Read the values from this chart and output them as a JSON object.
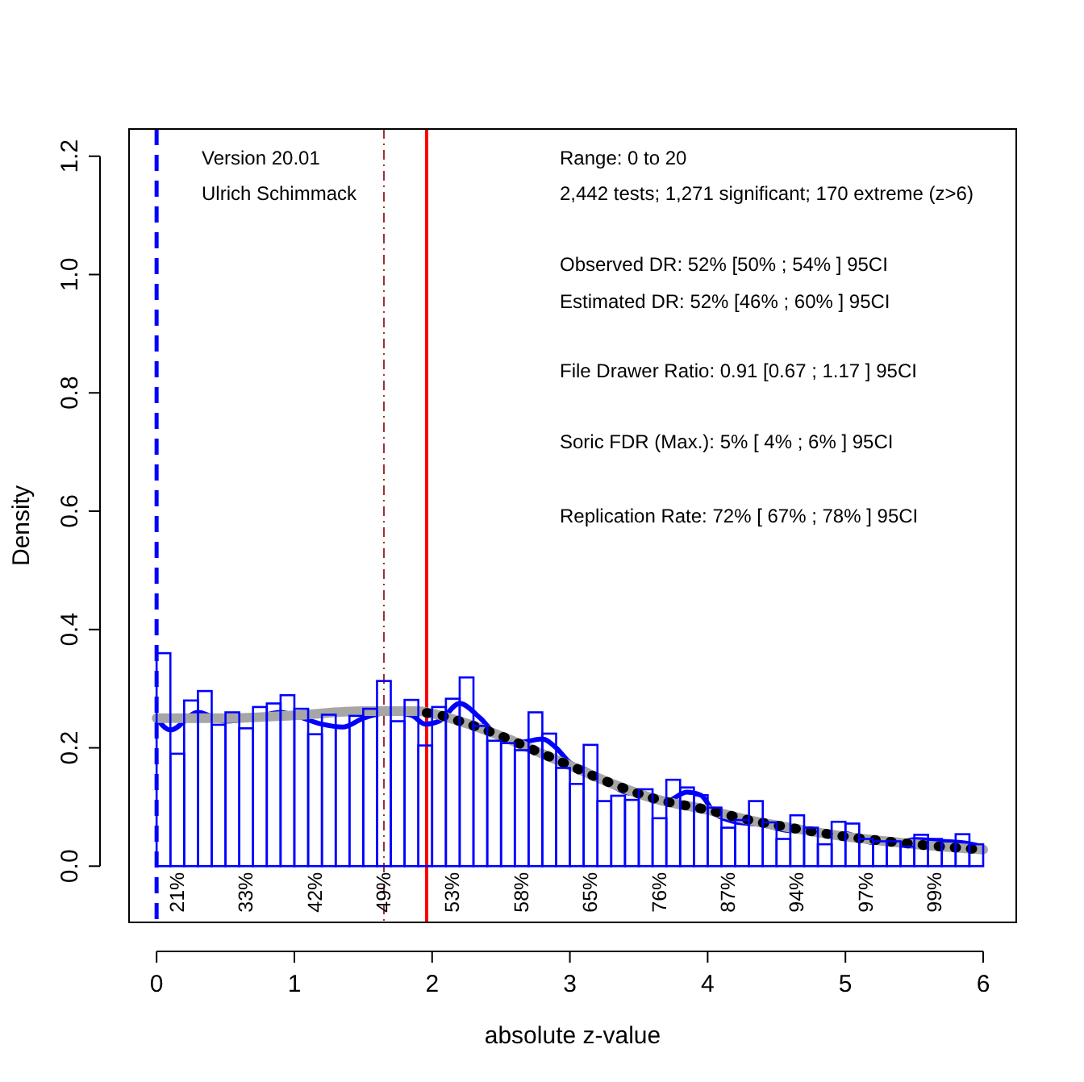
{
  "chart_data": {
    "type": "histogram",
    "xlabel": "absolute z-value",
    "ylabel": "Density",
    "bins": [
      0,
      0.1,
      0.2,
      0.3,
      0.4,
      0.5,
      0.6,
      0.7,
      0.8,
      0.9,
      1,
      1.1,
      1.2,
      1.3,
      1.4,
      1.5,
      1.6,
      1.7,
      1.8,
      1.9,
      2,
      2.1,
      2.2,
      2.3,
      2.4,
      2.5,
      2.6,
      2.7,
      2.8,
      2.9,
      3,
      3.1,
      3.2,
      3.3,
      3.4,
      3.5,
      3.6,
      3.7,
      3.8,
      3.9,
      4,
      4.1,
      4.2,
      4.3,
      4.4,
      4.5,
      4.6,
      4.7,
      4.8,
      4.9,
      5,
      5.1,
      5.2,
      5.3,
      5.4,
      5.5,
      5.6,
      5.7,
      5.8,
      5.9,
      6
    ],
    "values": [
      0.36,
      0.19,
      0.28,
      0.296,
      0.239,
      0.26,
      0.233,
      0.269,
      0.275,
      0.289,
      0.266,
      0.223,
      0.256,
      0.235,
      0.254,
      0.266,
      0.313,
      0.245,
      0.281,
      0.204,
      0.269,
      0.283,
      0.319,
      0.237,
      0.212,
      0.208,
      0.196,
      0.26,
      0.224,
      0.166,
      0.139,
      0.205,
      0.11,
      0.119,
      0.112,
      0.13,
      0.081,
      0.146,
      0.133,
      0.12,
      0.099,
      0.065,
      0.078,
      0.11,
      0.074,
      0.046,
      0.086,
      0.065,
      0.037,
      0.075,
      0.072,
      0.046,
      0.042,
      0.042,
      0.033,
      0.053,
      0.046,
      0.042,
      0.054,
      0.037
    ],
    "color": "#0000ff",
    "series": [
      {
        "type": "line",
        "color": "#0000ff",
        "line_style": "solid",
        "x": [
          0,
          0.1,
          0.3,
          0.5,
          0.7,
          0.9,
          1,
          1.2,
          1.35,
          1.5,
          1.7,
          1.85,
          1.95,
          2.05,
          2.2,
          2.35,
          2.5,
          2.65,
          2.8,
          2.9,
          3,
          3.1,
          3.25,
          3.4,
          3.55,
          3.7,
          3.85,
          3.95,
          4.05,
          4.2,
          4.4,
          4.6,
          4.75,
          4.9,
          5,
          5.2,
          5.4,
          5.5,
          5.7,
          5.9,
          6
        ],
        "values": [
          0.25,
          0.23,
          0.26,
          0.245,
          0.25,
          0.26,
          0.255,
          0.24,
          0.235,
          0.25,
          0.26,
          0.255,
          0.24,
          0.245,
          0.275,
          0.25,
          0.215,
          0.21,
          0.215,
          0.2,
          0.175,
          0.165,
          0.145,
          0.125,
          0.12,
          0.11,
          0.125,
          0.12,
          0.09,
          0.075,
          0.07,
          0.06,
          0.06,
          0.055,
          0.055,
          0.04,
          0.04,
          0.045,
          0.042,
          0.038,
          0.032
        ]
      },
      {
        "type": "line",
        "color": "#a6a6a6",
        "line_style": "solid",
        "x": [
          0,
          0.5,
          1,
          1.5,
          1.9,
          2,
          2.2,
          2.5,
          2.8,
          3,
          3.3,
          3.6,
          4,
          4.3,
          4.6,
          5,
          5.3,
          5.6,
          6
        ],
        "values": [
          0.25,
          0.25,
          0.255,
          0.262,
          0.262,
          0.258,
          0.245,
          0.22,
          0.19,
          0.17,
          0.14,
          0.115,
          0.095,
          0.078,
          0.065,
          0.05,
          0.042,
          0.035,
          0.028
        ]
      },
      {
        "type": "line",
        "color": "#000000",
        "line_style": "dotted",
        "x": [
          1.96,
          2,
          2.2,
          2.5,
          2.8,
          3,
          3.3,
          3.6,
          4,
          4.3,
          4.6,
          5,
          5.3,
          5.6,
          6
        ],
        "values": [
          0.259,
          0.258,
          0.245,
          0.22,
          0.19,
          0.17,
          0.14,
          0.115,
          0.095,
          0.078,
          0.065,
          0.05,
          0.042,
          0.035,
          0.028
        ]
      }
    ],
    "ref_lines": [
      {
        "axis": "x",
        "value": 0,
        "color": "#0000ff",
        "line_style": "dashed"
      },
      {
        "axis": "x",
        "value": 1.96,
        "color": "#ff0000",
        "line_style": "solid"
      },
      {
        "axis": "x",
        "value": 1.65,
        "color": "#993333",
        "line_style": "dashed"
      }
    ],
    "xlim": [
      -0.2,
      6.24
    ],
    "ylim": [
      -0.095,
      1.246
    ],
    "xticks": [
      0,
      1,
      2,
      3,
      4,
      5,
      6
    ],
    "yticks": [
      {
        "value": 0,
        "label": "0.0"
      },
      0.2,
      0.4,
      0.6,
      0.8,
      {
        "value": 1,
        "label": "1.0"
      },
      1.2
    ],
    "annotations": [
      "Version 20.01",
      "Ulrich Schimmack",
      "Range: 0 to 20",
      "2,442 tests; 1,271 significant; 170 extreme (z>6)",
      "Observed DR: 52% [50% ; 54% ] 95CI",
      "Estimated DR: 52% [46% ; 60% ] 95CI",
      "File Drawer Ratio: 0.91 [0.67 ; 1.17 ] 95CI",
      "Soric FDR (Max.): 5% [ 4% ; 6% ] 95CI",
      "Replication Rate: 72% [ 67% ; 78% ] 95CI",
      {
        "text": "21%",
        "x": 0.15,
        "y": -0.01
      },
      {
        "text": "33%",
        "x": 0.65,
        "y": -0.01
      },
      {
        "text": "42%",
        "x": 1.15,
        "y": -0.01
      },
      {
        "text": "49%",
        "x": 1.65,
        "y": -0.01
      },
      {
        "text": "53%",
        "x": 2.15,
        "y": -0.01
      },
      {
        "text": "58%",
        "x": 2.65,
        "y": -0.01
      },
      {
        "text": "65%",
        "x": 3.15,
        "y": -0.01
      },
      {
        "text": "76%",
        "x": 3.65,
        "y": -0.01
      },
      {
        "text": "87%",
        "x": 4.15,
        "y": -0.01
      },
      {
        "text": "94%",
        "x": 4.65,
        "y": -0.01
      },
      {
        "text": "97%",
        "x": 5.15,
        "y": -0.01
      },
      {
        "text": "99%",
        "x": 5.65,
        "y": -0.01
      }
    ]
  }
}
